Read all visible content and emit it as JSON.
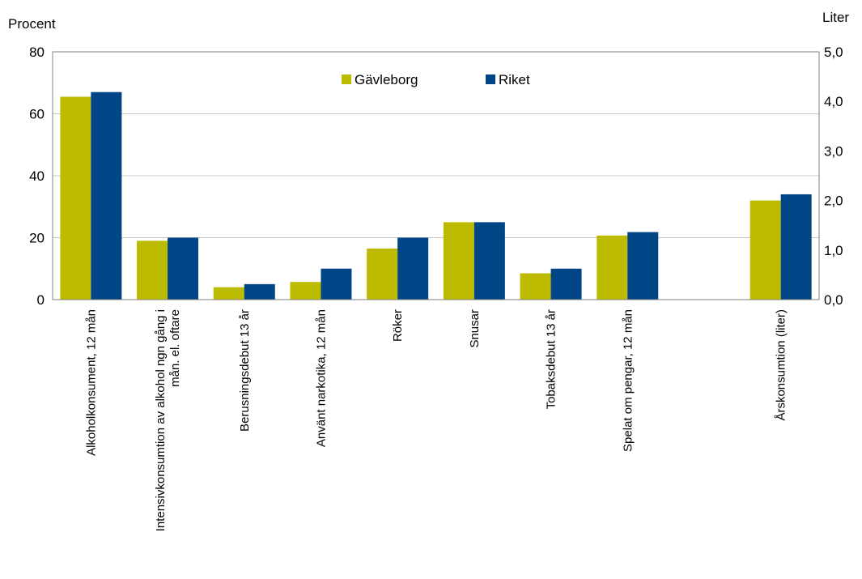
{
  "chart_data": {
    "type": "bar",
    "ylabel_left": "Procent",
    "ylabel_right": "Liter",
    "ylim_left": [
      0,
      80
    ],
    "ylim_right": [
      0,
      5
    ],
    "yticks_left": [
      "0",
      "20",
      "40",
      "60",
      "80"
    ],
    "yticks_right": [
      "0,0",
      "1,0",
      "2,0",
      "3,0",
      "4,0",
      "5,0"
    ],
    "grid": true,
    "legend_position": "top-center",
    "colors": {
      "Gävleborg": "#bdbb00",
      "Riket": "#004586"
    },
    "categories": [
      [
        "Alkoholkonsument, 12 mån"
      ],
      [
        "Intensivkonsumtion av alkohol ngn gång i",
        "mån. el. oftare"
      ],
      [
        "Berusningsdebut 13 år"
      ],
      [
        "Använt narkotika, 12 mån"
      ],
      [
        "Röker"
      ],
      [
        "Snusar"
      ],
      [
        "Tobaksdebut 13 år"
      ],
      [
        "Spelat om pengar, 12 mån"
      ],
      [
        ""
      ],
      [
        "Årskonsumtion (liter)"
      ]
    ],
    "series": [
      {
        "name": "Gävleborg",
        "values": [
          65.5,
          19,
          4,
          5.7,
          16.5,
          25,
          8.5,
          20.7,
          null,
          32
        ],
        "right_axis_value_index9": 2.0
      },
      {
        "name": "Riket",
        "values": [
          67,
          20,
          5,
          10,
          20,
          25,
          10,
          21.8,
          null,
          34
        ],
        "right_axis_value_index9": 2.13
      }
    ]
  }
}
